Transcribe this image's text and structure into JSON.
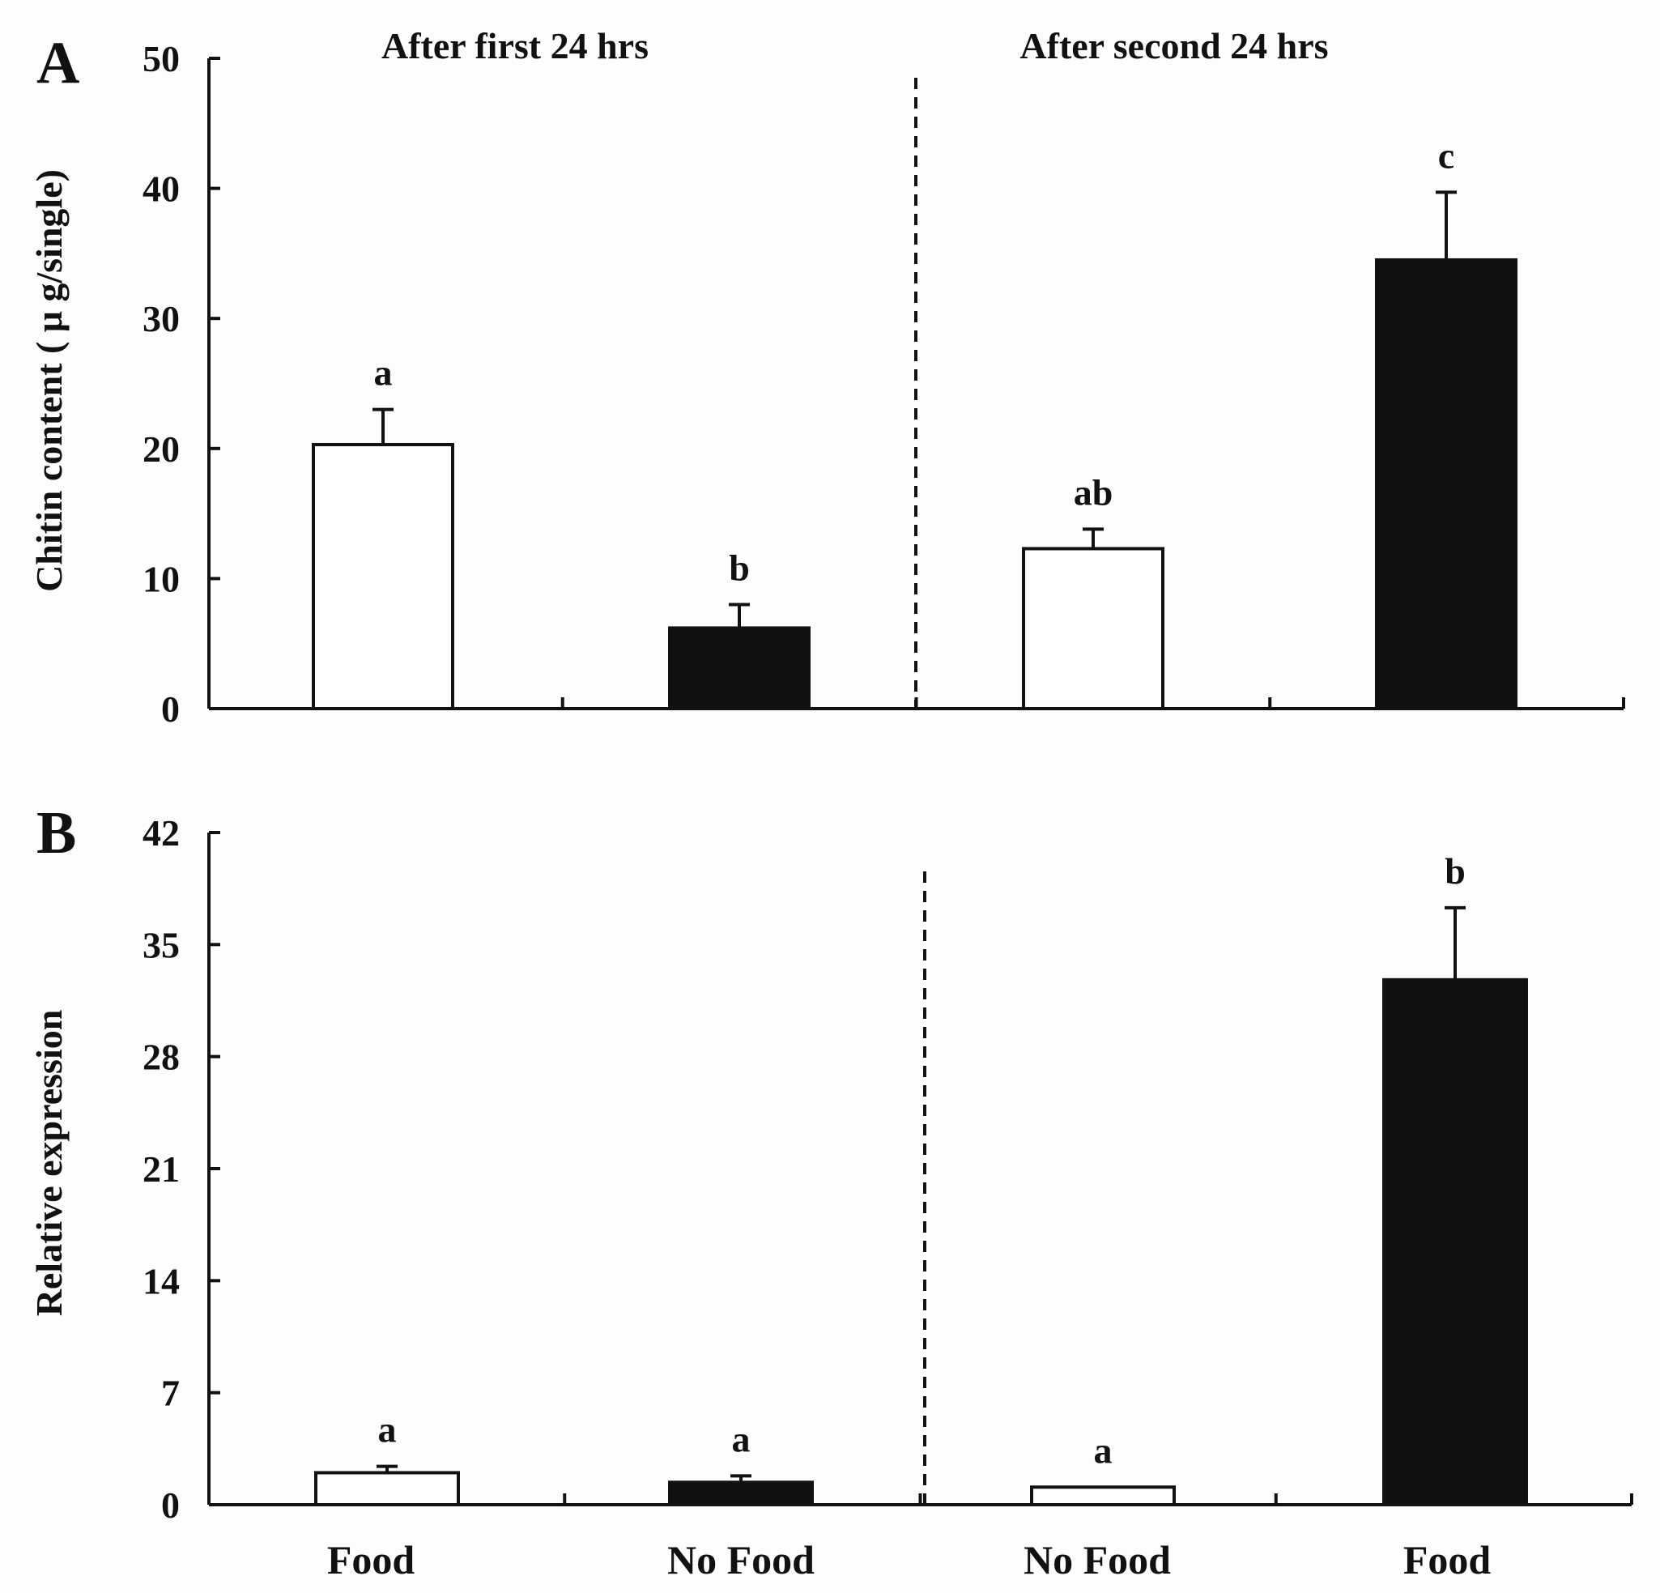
{
  "chart_data": [
    {
      "panel": "A",
      "type": "bar",
      "categories": [
        "Food",
        "No Food",
        "No Food",
        "Food"
      ],
      "values": [
        20.3,
        6.2,
        12.3,
        34.5
      ],
      "errors": [
        2.7,
        1.8,
        1.5,
        5.2
      ],
      "sig_labels": [
        "a",
        "b",
        "ab",
        "c"
      ],
      "fills": [
        "#ffffff",
        "#111111",
        "#ffffff",
        "#111111"
      ],
      "ylabel": "Chitin content ( μ g/single)",
      "ylim": [
        0,
        50
      ],
      "yticks": [
        "0",
        "10",
        "20",
        "30",
        "40",
        "50"
      ],
      "period_labels": [
        "After first 24 hrs",
        "After second 24 hrs"
      ]
    },
    {
      "panel": "B",
      "type": "bar",
      "categories": [
        "Food",
        "No Food",
        "No Food",
        "Food"
      ],
      "values": [
        2.0,
        1.4,
        1.1,
        32.8
      ],
      "errors": [
        0.4,
        0.4,
        0.0,
        4.5
      ],
      "sig_labels": [
        "a",
        "a",
        "a",
        "b"
      ],
      "fills": [
        "#ffffff",
        "#111111",
        "#ffffff",
        "#111111"
      ],
      "ylabel": "Relative expression",
      "ylim": [
        0,
        42
      ],
      "yticks": [
        "0",
        "7",
        "14",
        "21",
        "28",
        "35",
        "42"
      ],
      "xlabels": [
        "Food",
        "No Food",
        "No Food",
        "Food"
      ]
    }
  ]
}
